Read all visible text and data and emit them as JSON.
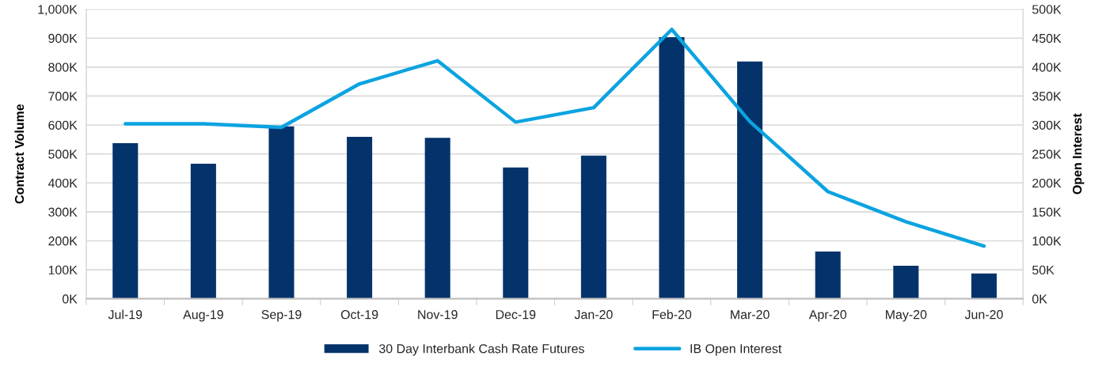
{
  "chart_data": {
    "type": "bar",
    "categories": [
      "Jul-19",
      "Aug-19",
      "Sep-19",
      "Oct-19",
      "Nov-19",
      "Dec-19",
      "Jan-20",
      "Feb-20",
      "Mar-20",
      "Apr-20",
      "May-20",
      "Jun-20"
    ],
    "ylabel": "Contract Volume",
    "y2label": "Open Interest",
    "series": [
      {
        "name": "30 Day Interbank Cash Rate Futures",
        "color": "#04336b",
        "values": [
          537000,
          466000,
          595000,
          559000,
          556000,
          453000,
          494000,
          903000,
          819000,
          163000,
          114000,
          87000
        ]
      },
      {
        "name": "IB Open Interest",
        "type": "line",
        "axis": "y2",
        "color": "#0ba3e0",
        "values": [
          302000,
          302000,
          296000,
          371000,
          411000,
          305000,
          330000,
          465000,
          306000,
          185000,
          133000,
          91000
        ]
      }
    ],
    "ylim": [
      0,
      1000000
    ],
    "yticks": [
      {
        "value": 0,
        "label": "0K"
      },
      {
        "value": 100000,
        "label": "100K"
      },
      {
        "value": 200000,
        "label": "200K"
      },
      {
        "value": 300000,
        "label": "300K"
      },
      {
        "value": 400000,
        "label": "400K"
      },
      {
        "value": 500000,
        "label": "500K"
      },
      {
        "value": 600000,
        "label": "600K"
      },
      {
        "value": 700000,
        "label": "700K"
      },
      {
        "value": 800000,
        "label": "800K"
      },
      {
        "value": 900000,
        "label": "900K"
      },
      {
        "value": 1000000,
        "label": "1,000K"
      }
    ],
    "y2lim": [
      0,
      500000
    ],
    "y2ticks": [
      {
        "value": 0,
        "label": "0K"
      },
      {
        "value": 50000,
        "label": "50K"
      },
      {
        "value": 100000,
        "label": "100K"
      },
      {
        "value": 150000,
        "label": "150K"
      },
      {
        "value": 200000,
        "label": "200K"
      },
      {
        "value": 250000,
        "label": "250K"
      },
      {
        "value": 300000,
        "label": "300K"
      },
      {
        "value": 350000,
        "label": "350K"
      },
      {
        "value": 400000,
        "label": "400K"
      },
      {
        "value": 450000,
        "label": "450K"
      },
      {
        "value": 500000,
        "label": "500K"
      }
    ],
    "grid": "y",
    "legend": "bottom",
    "line_style": "solid"
  }
}
